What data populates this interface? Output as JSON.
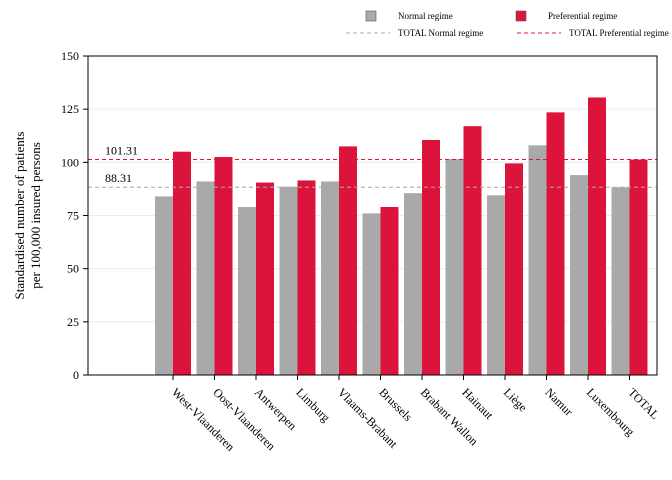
{
  "chart_data": {
    "type": "bar",
    "ylabel_lines": [
      "Standardised number of patients",
      "per 100,000 insured persons"
    ],
    "categories": [
      "West-Vlaanderen",
      "Oost-Vlaanderen",
      "Antwerpen",
      "Limburg",
      "Vlaams-Brabant",
      "Brussels",
      "Brabant Wallon",
      "Hainaut",
      "Liège",
      "Namur",
      "Luxembourg",
      "TOTAL"
    ],
    "series": [
      {
        "name": "Normal regime",
        "color": "#a9a9a9",
        "values": [
          84,
          91,
          79,
          88.5,
          91,
          76,
          85.5,
          101.5,
          84.5,
          108,
          94,
          88.31
        ]
      },
      {
        "name": "Preferential regime",
        "color": "#dc143c",
        "values": [
          105,
          102.5,
          90.5,
          91.5,
          107.5,
          79,
          110.5,
          117,
          99.5,
          123.5,
          130.5,
          101.31
        ]
      }
    ],
    "reference_lines": [
      {
        "series": "Normal regime",
        "legend_label": "TOTAL Normal regime",
        "value": 88.31,
        "label": "88.31",
        "color": "#a9a9a9"
      },
      {
        "series": "Preferential regime",
        "legend_label": "TOTAL Preferential regime",
        "value": 101.31,
        "label": "101.31",
        "color": "#dc143c"
      }
    ],
    "ylim": [
      0,
      150
    ],
    "yticks": [
      0,
      25,
      50,
      75,
      100,
      125,
      150
    ],
    "grid": true,
    "legend_position": "top-right"
  }
}
